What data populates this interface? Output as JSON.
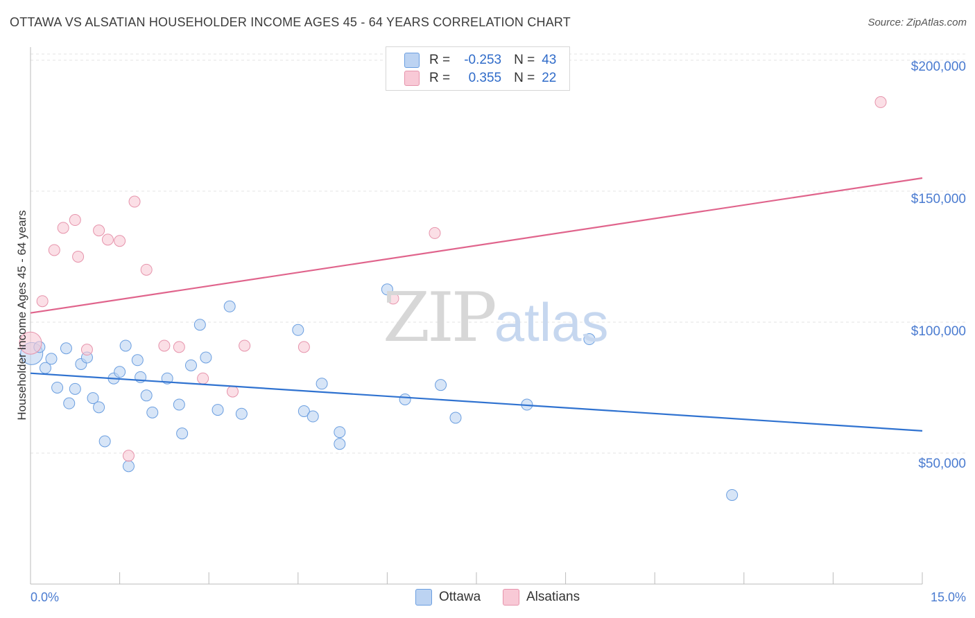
{
  "title": "OTTAWA VS ALSATIAN HOUSEHOLDER INCOME AGES 45 - 64 YEARS CORRELATION CHART",
  "source": "Source: ZipAtlas.com",
  "watermark": {
    "zip": "ZIP",
    "atlas": "atlas"
  },
  "legend": {
    "r_label": "R =",
    "n_label": "N =",
    "rows": [
      {
        "r": "-0.253",
        "n": "43"
      },
      {
        "r": "0.355",
        "n": "22"
      }
    ]
  },
  "colors": {
    "ottawa_fill": "#bcd3f2",
    "ottawa_stroke": "#6a9ee0",
    "ottawa_line": "#2f72d0",
    "alsatian_fill": "#f8c9d6",
    "alsatian_stroke": "#e693ab",
    "alsatian_line": "#e0648c",
    "tick_text": "#4a7bd0",
    "grid": "#e3e3e3"
  },
  "chart_data": {
    "type": "scatter",
    "title": "OTTAWA VS ALSATIAN HOUSEHOLDER INCOME AGES 45 - 64 YEARS CORRELATION CHART",
    "xlabel": "",
    "ylabel": "Householder Income Ages 45 - 64 years",
    "xlim": [
      0,
      15
    ],
    "ylim": [
      0,
      205000
    ],
    "x_tick_labels": [
      "0.0%",
      "15.0%"
    ],
    "y_ticks": [
      50000,
      100000,
      150000,
      200000
    ],
    "y_tick_labels": [
      "$50,000",
      "$100,000",
      "$150,000",
      "$200,000"
    ],
    "grid": true,
    "legend_position": "bottom-center",
    "series": [
      {
        "name": "Ottawa",
        "r": -0.253,
        "n": 43,
        "trend": {
          "x": [
            0,
            15
          ],
          "y": [
            80500,
            58500
          ]
        },
        "points": [
          [
            0.02,
            88000
          ],
          [
            0.15,
            90500
          ],
          [
            0.25,
            82500
          ],
          [
            0.35,
            86000
          ],
          [
            0.45,
            75000
          ],
          [
            0.6,
            90000
          ],
          [
            0.65,
            69000
          ],
          [
            0.75,
            74500
          ],
          [
            0.85,
            84000
          ],
          [
            0.95,
            86500
          ],
          [
            1.05,
            71000
          ],
          [
            1.15,
            67500
          ],
          [
            1.25,
            54500
          ],
          [
            1.4,
            78500
          ],
          [
            1.5,
            81000
          ],
          [
            1.6,
            91000
          ],
          [
            1.65,
            45000
          ],
          [
            1.8,
            85500
          ],
          [
            1.85,
            79000
          ],
          [
            1.95,
            72000
          ],
          [
            2.05,
            65500
          ],
          [
            2.3,
            78500
          ],
          [
            2.5,
            68500
          ],
          [
            2.55,
            57500
          ],
          [
            2.7,
            83500
          ],
          [
            2.85,
            99000
          ],
          [
            2.95,
            86500
          ],
          [
            3.15,
            66500
          ],
          [
            3.35,
            106000
          ],
          [
            3.55,
            65000
          ],
          [
            4.5,
            97000
          ],
          [
            4.6,
            66000
          ],
          [
            4.75,
            64000
          ],
          [
            4.9,
            76500
          ],
          [
            5.2,
            58000
          ],
          [
            5.2,
            53500
          ],
          [
            6.0,
            112500
          ],
          [
            6.3,
            70500
          ],
          [
            6.9,
            76000
          ],
          [
            7.15,
            63500
          ],
          [
            8.35,
            68500
          ],
          [
            9.4,
            93500
          ],
          [
            11.8,
            34000
          ]
        ]
      },
      {
        "name": "Alsatians",
        "r": 0.355,
        "n": 22,
        "trend": {
          "x": [
            0,
            15
          ],
          "y": [
            103500,
            155000
          ]
        },
        "points": [
          [
            0.0,
            92000
          ],
          [
            0.2,
            108000
          ],
          [
            0.4,
            127500
          ],
          [
            0.55,
            136000
          ],
          [
            0.75,
            139000
          ],
          [
            0.8,
            125000
          ],
          [
            0.95,
            89500
          ],
          [
            1.15,
            135000
          ],
          [
            1.3,
            131500
          ],
          [
            1.5,
            131000
          ],
          [
            1.65,
            49000
          ],
          [
            1.75,
            146000
          ],
          [
            1.95,
            120000
          ],
          [
            2.25,
            91000
          ],
          [
            2.5,
            90500
          ],
          [
            2.9,
            78500
          ],
          [
            3.4,
            73500
          ],
          [
            3.6,
            91000
          ],
          [
            4.6,
            90500
          ],
          [
            6.1,
            109000
          ],
          [
            6.8,
            134000
          ],
          [
            14.3,
            184000
          ]
        ]
      }
    ]
  }
}
